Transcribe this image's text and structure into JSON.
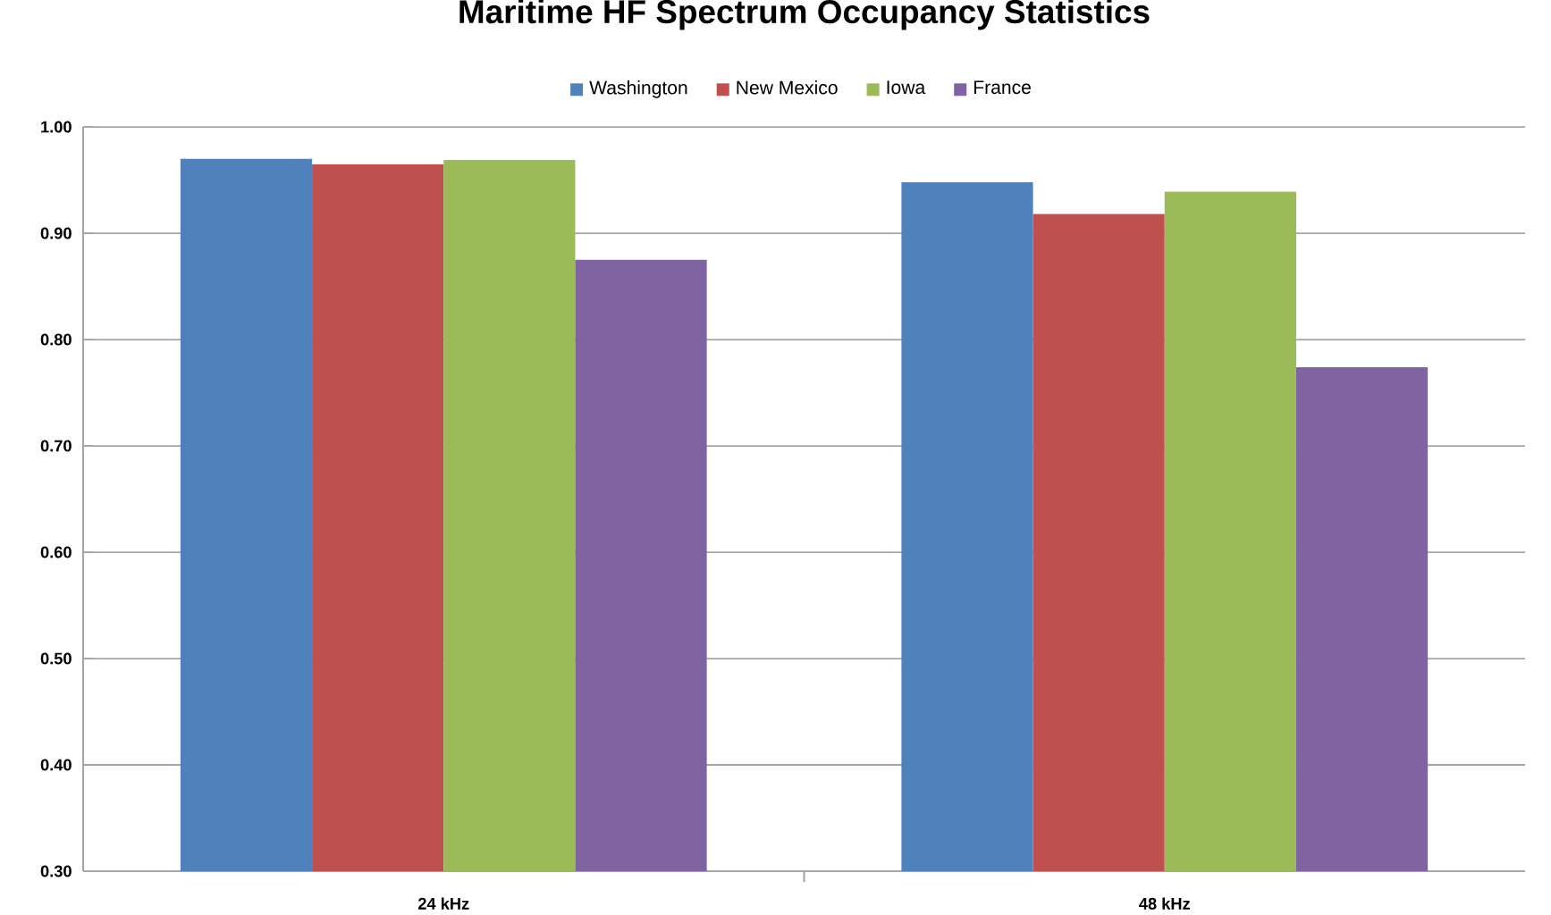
{
  "chart_data": {
    "type": "bar",
    "title": "Maritime HF Spectrum Occupancy Statistics",
    "categories": [
      "24 kHz",
      "48 kHz"
    ],
    "series": [
      {
        "name": "Washington",
        "color": "#4f81bd",
        "values": [
          0.97,
          0.948
        ]
      },
      {
        "name": "New Mexico",
        "color": "#c0504d",
        "values": [
          0.965,
          0.918
        ]
      },
      {
        "name": "Iowa",
        "color": "#9bbb59",
        "values": [
          0.969,
          0.939
        ]
      },
      {
        "name": "France",
        "color": "#8064a2",
        "values": [
          0.875,
          0.774
        ]
      }
    ],
    "ylim": [
      0.3,
      1.0
    ],
    "yticks": [
      {
        "value": 0.3,
        "label": "0.30"
      },
      {
        "value": 0.4,
        "label": "0.40"
      },
      {
        "value": 0.5,
        "label": "0.50"
      },
      {
        "value": 0.6,
        "label": "0.60"
      },
      {
        "value": 0.7,
        "label": "0.70"
      },
      {
        "value": 0.8,
        "label": "0.80"
      },
      {
        "value": 0.9,
        "label": "0.90"
      },
      {
        "value": 1.0,
        "label": "1.00"
      }
    ],
    "grid": "y",
    "legend": "top"
  }
}
